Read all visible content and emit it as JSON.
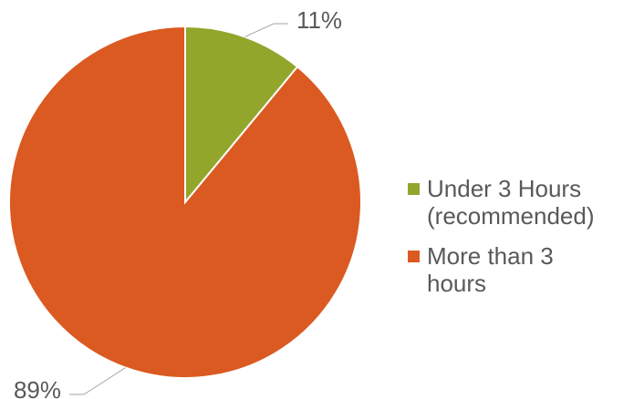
{
  "chart_data": {
    "type": "pie",
    "title": "",
    "slices": [
      {
        "label": "Under 3 Hours (recommended)",
        "value": 11,
        "display": "11%",
        "color": "#92A62C"
      },
      {
        "label": "More than 3 hours",
        "value": 89,
        "display": "89%",
        "color": "#DB5A21"
      }
    ],
    "start_angle_deg": 0,
    "direction": "clockwise",
    "legend_position": "right"
  },
  "legend": {
    "items": [
      {
        "line1": "Under 3 Hours",
        "line2": "(recommended)"
      },
      {
        "line1": "More than 3",
        "line2": "hours"
      }
    ]
  }
}
